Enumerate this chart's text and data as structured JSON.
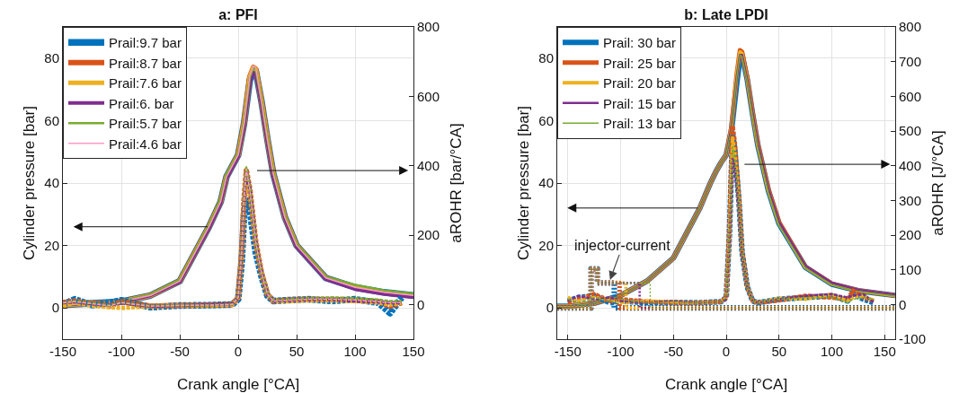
{
  "chart_data": [
    {
      "type": "line",
      "title": "a: PFI",
      "xlabel": "Crank angle [°CA]",
      "ylabel": "Cylinder pressure [bar]",
      "y2label": "aROHR [bar/°CA]",
      "xlim": [
        -150,
        150
      ],
      "xticks": [
        -150,
        -100,
        -50,
        0,
        50,
        100,
        150
      ],
      "ylim": [
        -10,
        90
      ],
      "yticks": [
        0,
        20,
        40,
        60,
        80
      ],
      "y2lim": [
        -100,
        800
      ],
      "y2ticks": [
        0,
        200,
        400,
        600,
        800
      ],
      "grid": true,
      "legend": "top left",
      "series": [
        {
          "name": "Prail:9.7 bar",
          "color": "#0072bd",
          "line_style": "solid",
          "x": [
            -150,
            -125,
            -100,
            -75,
            -50,
            -25,
            -20,
            -15,
            -10,
            -5,
            0,
            5,
            10,
            13,
            15,
            20,
            25,
            30,
            40,
            50,
            75,
            100,
            125,
            150
          ],
          "values": [
            1,
            1.5,
            2,
            4,
            8.6,
            26,
            30,
            34,
            42,
            45.5,
            49,
            59,
            73,
            76,
            76,
            66,
            54,
            43,
            29,
            20,
            9.6,
            6.6,
            5,
            4
          ]
        },
        {
          "name": "Prail:8.7 bar",
          "color": "#d95319",
          "line_style": "solid",
          "x": [
            -150,
            -125,
            -100,
            -75,
            -50,
            -25,
            -20,
            -15,
            -10,
            -5,
            0,
            5,
            10,
            13,
            15,
            20,
            25,
            30,
            40,
            50,
            75,
            100,
            125,
            150
          ],
          "values": [
            1,
            1.5,
            2,
            4,
            8.6,
            26,
            30,
            34,
            42,
            45.5,
            49,
            59,
            74,
            77,
            76.5,
            66,
            54,
            43,
            29,
            20,
            9.6,
            6.6,
            5,
            4
          ]
        },
        {
          "name": "Prail:7.6 bar",
          "color": "#edb120",
          "line_style": "solid",
          "x": [
            -150,
            -125,
            -100,
            -75,
            -50,
            -25,
            -20,
            -15,
            -10,
            -5,
            0,
            5,
            10,
            13,
            15,
            20,
            25,
            30,
            40,
            50,
            75,
            100,
            125,
            150
          ],
          "values": [
            1,
            1.5,
            2,
            4,
            8.6,
            26,
            30,
            34,
            42,
            45.5,
            49,
            59,
            74,
            77,
            76.5,
            66,
            54,
            43,
            29,
            20,
            9.6,
            6.6,
            5,
            4
          ]
        },
        {
          "name": "Prail:6. bar",
          "color": "#7e2f8e",
          "line_style": "solid",
          "x": [
            -150,
            -125,
            -100,
            -75,
            -50,
            -25,
            -20,
            -15,
            -10,
            -5,
            0,
            5,
            10,
            13,
            15,
            20,
            25,
            30,
            40,
            50,
            75,
            100,
            125,
            150
          ],
          "values": [
            1,
            1.5,
            2,
            4,
            8.4,
            25.5,
            29.5,
            33.5,
            41.5,
            45,
            48.5,
            58,
            72,
            75.5,
            75,
            65,
            53,
            42,
            28.5,
            19.5,
            9.2,
            6,
            4.4,
            3.4
          ]
        },
        {
          "name": "Prail:5.7 bar",
          "color": "#77ac30",
          "line_style": "solid",
          "x": [
            -150,
            -125,
            -100,
            -75,
            -50,
            -25,
            -20,
            -15,
            -10,
            -5,
            0,
            5,
            10,
            13,
            15,
            20,
            25,
            30,
            40,
            50,
            75,
            100,
            125,
            150
          ],
          "values": [
            1,
            1.5,
            2.2,
            4.3,
            9,
            26.5,
            30.5,
            35,
            43,
            46,
            49.5,
            59.5,
            74,
            77,
            76.5,
            66.5,
            54.5,
            43.5,
            29.5,
            20.5,
            10,
            7.4,
            5.6,
            4.6
          ]
        },
        {
          "name": "Prail:4.6 bar",
          "color": "#ff99c8",
          "line_style": "solid",
          "x": [
            -150,
            -125,
            -100,
            -75,
            -50,
            -25,
            -20,
            -15,
            -10,
            -5,
            0,
            5,
            10,
            13,
            15,
            20,
            25,
            30,
            40,
            50,
            75,
            100,
            125,
            150
          ],
          "values": [
            1,
            1.5,
            2,
            4,
            8.6,
            26,
            30,
            34,
            42,
            45.5,
            49,
            59,
            74.5,
            77.5,
            77,
            66,
            54,
            43,
            29,
            20,
            9.6,
            6.6,
            5,
            4
          ]
        },
        {
          "color": "#0072bd",
          "line_style": "dashed",
          "axis": "y2",
          "x": [
            -150,
            -140,
            -125,
            -110,
            -100,
            -75,
            -50,
            -25,
            -5,
            0,
            3,
            5,
            7,
            10,
            15,
            20,
            25,
            30,
            40,
            60,
            80,
            100,
            120,
            130,
            140
          ],
          "values": [
            0,
            15,
            -2,
            5,
            12,
            -8,
            -3,
            -2,
            0,
            15,
            120,
            260,
            300,
            270,
            150,
            80,
            25,
            10,
            12,
            15,
            10,
            15,
            5,
            -25,
            20
          ]
        },
        {
          "color": "#d95319",
          "line_style": "dashed",
          "axis": "y2",
          "x": [
            -150,
            -140,
            -125,
            -110,
            -100,
            -75,
            -50,
            -25,
            -5,
            0,
            3,
            5,
            7,
            10,
            15,
            20,
            25,
            30,
            40,
            60,
            80,
            100,
            120,
            130,
            140
          ],
          "values": [
            5,
            10,
            2,
            -4,
            8,
            -5,
            -3,
            -2,
            0,
            20,
            150,
            300,
            385,
            330,
            180,
            90,
            30,
            10,
            12,
            15,
            15,
            13,
            8,
            -5,
            5
          ]
        },
        {
          "color": "#edb120",
          "line_style": "dashed",
          "axis": "y2",
          "x": [
            -150,
            -140,
            -125,
            -110,
            -100,
            -75,
            -50,
            -25,
            -5,
            0,
            3,
            5,
            7,
            10,
            15,
            20,
            25,
            30,
            40,
            60,
            80,
            100,
            120,
            130,
            140
          ],
          "values": [
            -5,
            5,
            -3,
            -8,
            -10,
            -5,
            -3,
            -2,
            0,
            20,
            145,
            295,
            380,
            325,
            180,
            90,
            30,
            10,
            10,
            12,
            12,
            10,
            6,
            0,
            5
          ]
        },
        {
          "color": "#7e2f8e",
          "line_style": "dashed",
          "axis": "y2",
          "x": [
            -150,
            -140,
            -125,
            -110,
            -100,
            -75,
            -50,
            -25,
            -5,
            0,
            3,
            5,
            7,
            10,
            15,
            20,
            25,
            30,
            40,
            60,
            80,
            100,
            120,
            130,
            140
          ],
          "values": [
            5,
            8,
            2,
            -2,
            5,
            -5,
            -3,
            0,
            2,
            20,
            150,
            300,
            385,
            335,
            185,
            90,
            30,
            10,
            12,
            15,
            15,
            10,
            8,
            5,
            5
          ]
        },
        {
          "color": "#77ac30",
          "line_style": "dashed",
          "axis": "y2",
          "x": [
            -150,
            -140,
            -125,
            -110,
            -100,
            -75,
            -50,
            -25,
            -5,
            0,
            3,
            5,
            7,
            10,
            15,
            20,
            25,
            30,
            40,
            60,
            80,
            100,
            120,
            130,
            140
          ],
          "values": [
            5,
            10,
            4,
            -2,
            6,
            -4,
            -2,
            -2,
            0,
            22,
            155,
            310,
            395,
            335,
            180,
            90,
            30,
            12,
            14,
            18,
            20,
            18,
            14,
            10,
            10
          ]
        },
        {
          "color": "#ff99c8",
          "line_style": "dashed",
          "axis": "y2",
          "x": [
            -150,
            -140,
            -125,
            -110,
            -100,
            -75,
            -50,
            -25,
            -5,
            0,
            3,
            5,
            7,
            10,
            15,
            20,
            25,
            30,
            40,
            60,
            80,
            100,
            120,
            130,
            140
          ],
          "values": [
            5,
            8,
            2,
            -4,
            5,
            -5,
            -3,
            -2,
            0,
            20,
            150,
            300,
            390,
            330,
            180,
            90,
            30,
            10,
            12,
            15,
            15,
            13,
            8,
            5,
            5
          ]
        }
      ]
    },
    {
      "type": "line",
      "title": "b: Late LPDI",
      "xlabel": "Crank angle [°CA]",
      "ylabel": "Cylinder pressure [bar]",
      "y2label": "aROHR [J/°CA]",
      "xlim": [
        -160,
        160
      ],
      "xticks": [
        -150,
        -100,
        -50,
        0,
        50,
        100,
        150
      ],
      "ylim": [
        -10,
        90
      ],
      "yticks": [
        0,
        20,
        40,
        60,
        80
      ],
      "y2lim": [
        -100,
        800
      ],
      "y2ticks": [
        -100,
        0,
        100,
        200,
        300,
        400,
        500,
        600,
        700,
        800
      ],
      "grid": true,
      "legend": "top left",
      "annotations": [
        {
          "text": "injector-current",
          "x": -110,
          "y": 9
        }
      ],
      "series": [
        {
          "name": "Prail: 30 bar",
          "color": "#0072bd",
          "line_style": "solid",
          "x": [
            -160,
            -150,
            -125,
            -100,
            -75,
            -50,
            -25,
            -20,
            -15,
            -10,
            -5,
            0,
            5,
            10,
            13,
            15,
            20,
            25,
            30,
            40,
            50,
            75,
            100,
            125,
            160
          ],
          "values": [
            0.5,
            0.5,
            1.5,
            4,
            8.6,
            16,
            32,
            36,
            40,
            43.5,
            46.5,
            49,
            57,
            72,
            80,
            81,
            73,
            62,
            52,
            37.5,
            27,
            13,
            7.6,
            5.5,
            4
          ]
        },
        {
          "name": "Prail: 25 bar",
          "color": "#d95319",
          "line_style": "solid",
          "x": [
            -160,
            -150,
            -125,
            -100,
            -75,
            -50,
            -25,
            -20,
            -15,
            -10,
            -5,
            0,
            5,
            10,
            13,
            15,
            20,
            25,
            30,
            40,
            50,
            75,
            100,
            125,
            160
          ],
          "values": [
            0.5,
            0.5,
            1.5,
            4,
            8.6,
            16,
            32,
            36,
            40,
            43.5,
            46.5,
            49,
            58,
            75,
            82.5,
            82,
            73.5,
            62.5,
            52.5,
            38,
            27.5,
            13.2,
            7.8,
            5.6,
            4
          ]
        },
        {
          "name": "Prail: 20 bar",
          "color": "#edb120",
          "line_style": "solid",
          "x": [
            -160,
            -150,
            -125,
            -100,
            -75,
            -50,
            -25,
            -20,
            -15,
            -10,
            -5,
            0,
            5,
            10,
            13,
            15,
            20,
            25,
            30,
            40,
            50,
            75,
            100,
            125,
            160
          ],
          "values": [
            0.5,
            0.5,
            1.5,
            4,
            8.6,
            16,
            32,
            36,
            40,
            43.5,
            46.5,
            49,
            58,
            75,
            82,
            81.5,
            73,
            62,
            52,
            37.5,
            27,
            13,
            7.6,
            5.5,
            4
          ]
        },
        {
          "name": "Prail: 15 bar",
          "color": "#7e2f8e",
          "line_style": "solid",
          "x": [
            -160,
            -150,
            -125,
            -100,
            -75,
            -50,
            -25,
            -20,
            -15,
            -10,
            -5,
            0,
            5,
            10,
            13,
            15,
            20,
            25,
            30,
            40,
            50,
            75,
            100,
            125,
            160
          ],
          "values": [
            0.5,
            0.5,
            1.5,
            4,
            8.6,
            16,
            32,
            36,
            40,
            43.5,
            46.5,
            49,
            58,
            74,
            81,
            81,
            73,
            62.5,
            52.5,
            38,
            27.5,
            13.5,
            8,
            5.8,
            4.2
          ]
        },
        {
          "name": "Prail: 13 bar",
          "color": "#77ac30",
          "line_style": "solid",
          "x": [
            -160,
            -150,
            -125,
            -100,
            -75,
            -50,
            -25,
            -20,
            -15,
            -10,
            -5,
            0,
            5,
            10,
            13,
            15,
            20,
            25,
            30,
            40,
            50,
            75,
            100,
            125,
            160
          ],
          "values": [
            0.5,
            0.5,
            1.5,
            4,
            8.6,
            16,
            32,
            36,
            40,
            43.5,
            46.5,
            49,
            57.5,
            74,
            81,
            80.5,
            72.5,
            61.5,
            51.5,
            37,
            26.5,
            12.8,
            7.4,
            5.3,
            3.8
          ]
        },
        {
          "color": "#0072bd",
          "line_style": "dashed",
          "axis": "y2",
          "x": [
            -150,
            -140,
            -125,
            -110,
            -100,
            -75,
            -50,
            -25,
            -5,
            0,
            3,
            6,
            8,
            12,
            15,
            20,
            25,
            30,
            50,
            75,
            100,
            115,
            120,
            130,
            140
          ],
          "values": [
            10,
            20,
            25,
            5,
            10,
            5,
            5,
            5,
            8,
            20,
            200,
            490,
            450,
            300,
            150,
            50,
            10,
            5,
            15,
            20,
            25,
            10,
            30,
            15,
            5
          ]
        },
        {
          "color": "#d95319",
          "line_style": "dashed",
          "axis": "y2",
          "x": [
            -150,
            -140,
            -125,
            -110,
            -100,
            -75,
            -50,
            -25,
            -5,
            0,
            3,
            6,
            8,
            12,
            15,
            20,
            25,
            30,
            50,
            75,
            100,
            115,
            120,
            130,
            140
          ],
          "values": [
            5,
            15,
            30,
            10,
            15,
            8,
            5,
            5,
            8,
            20,
            210,
            515,
            470,
            310,
            155,
            50,
            10,
            5,
            12,
            25,
            20,
            15,
            40,
            20,
            10
          ]
        },
        {
          "color": "#edb120",
          "line_style": "dashed",
          "axis": "y2",
          "x": [
            -150,
            -140,
            -125,
            -110,
            -100,
            -75,
            -50,
            -25,
            -5,
            0,
            3,
            6,
            8,
            12,
            15,
            20,
            25,
            30,
            50,
            75,
            100,
            115,
            120,
            130,
            140
          ],
          "values": [
            20,
            10,
            20,
            15,
            5,
            10,
            8,
            5,
            8,
            18,
            190,
            480,
            440,
            295,
            150,
            50,
            10,
            5,
            18,
            15,
            30,
            10,
            20,
            25,
            10
          ]
        },
        {
          "color": "#7e2f8e",
          "line_style": "dashed",
          "axis": "y2",
          "x": [
            -150,
            -140,
            -125,
            -110,
            -100,
            -75,
            -50,
            -25,
            -5,
            0,
            3,
            6,
            8,
            12,
            15,
            20,
            25,
            30,
            50,
            75,
            100,
            115,
            120,
            130,
            140
          ],
          "values": [
            10,
            25,
            15,
            20,
            10,
            5,
            10,
            5,
            8,
            15,
            180,
            420,
            400,
            280,
            145,
            50,
            10,
            5,
            15,
            25,
            30,
            20,
            25,
            30,
            5
          ]
        },
        {
          "color": "#77ac30",
          "line_style": "dashed",
          "axis": "y2",
          "x": [
            -150,
            -140,
            -125,
            -110,
            -100,
            -75,
            -50,
            -25,
            -5,
            0,
            3,
            6,
            8,
            12,
            15,
            20,
            25,
            30,
            50,
            75,
            100,
            115,
            120,
            130,
            140
          ],
          "values": [
            15,
            5,
            20,
            10,
            15,
            5,
            8,
            5,
            8,
            20,
            195,
            455,
            430,
            290,
            150,
            50,
            10,
            5,
            15,
            20,
            20,
            5,
            15,
            20,
            15
          ]
        },
        {
          "color": "#0072bd",
          "line_style": "dotted",
          "x": [
            -160,
            -128,
            -128,
            -122,
            -122,
            -106,
            -106,
            160
          ],
          "values": [
            0,
            0,
            12.5,
            12.5,
            8,
            8,
            0,
            0
          ]
        },
        {
          "color": "#d95319",
          "line_style": "dotted",
          "x": [
            -160,
            -128,
            -128,
            -122,
            -122,
            -101,
            -101,
            160
          ],
          "values": [
            0,
            0,
            12.5,
            12.5,
            8,
            8,
            0,
            0
          ]
        },
        {
          "color": "#edb120",
          "line_style": "dotted",
          "x": [
            -160,
            -128,
            -128,
            -122,
            -122,
            -95,
            -95,
            160
          ],
          "values": [
            0,
            0,
            12.5,
            12.5,
            8,
            8,
            0,
            0
          ]
        },
        {
          "color": "#7e2f8e",
          "line_style": "dotted",
          "x": [
            -160,
            -128,
            -128,
            -122,
            -122,
            -82,
            -82,
            160
          ],
          "values": [
            0,
            0,
            12.5,
            12.5,
            8,
            8,
            0,
            0
          ]
        },
        {
          "color": "#77ac30",
          "line_style": "dotted",
          "x": [
            -160,
            -128,
            -128,
            -122,
            -122,
            -72,
            -72,
            160
          ],
          "values": [
            0,
            0,
            12.5,
            12.5,
            8,
            8,
            0,
            0
          ]
        }
      ]
    }
  ]
}
